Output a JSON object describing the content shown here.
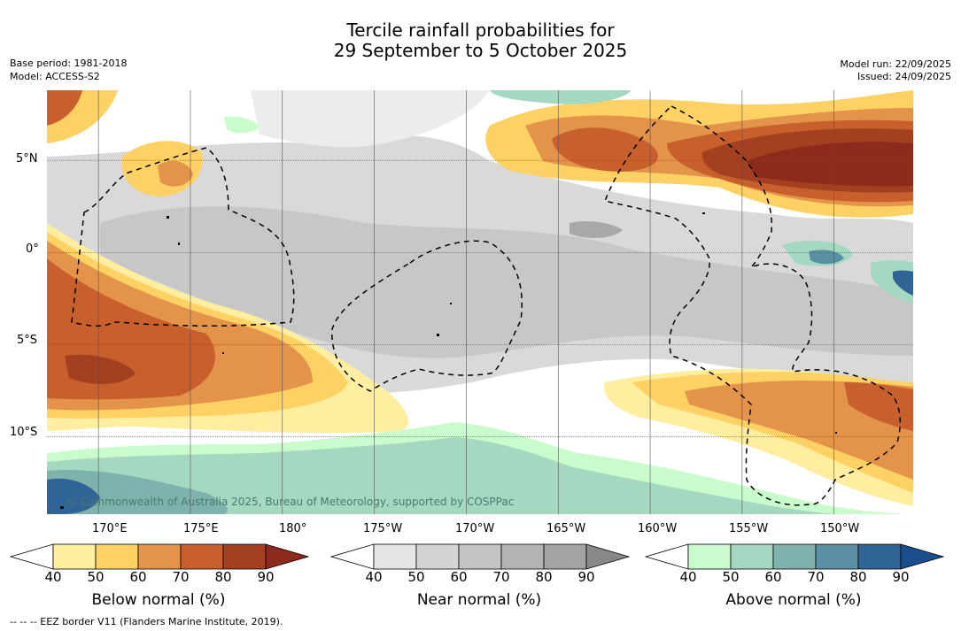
{
  "header": {
    "title_line1": "Tercile rainfall probabilities for",
    "title_line2": "29 September to 5 October 2025",
    "base_period": "Base period: 1981-2018",
    "model": "Model: ACCESS-S2",
    "model_run": "Model run: 22/09/2025",
    "issued": "Issued: 24/09/2025"
  },
  "map": {
    "lat_labels": [
      "5°N",
      "0°",
      "5°S",
      "10°S"
    ],
    "lon_labels": [
      "170°E",
      "175°E",
      "180°",
      "175°W",
      "170°W",
      "165°W",
      "160°W",
      "155°W",
      "150°W"
    ],
    "copyright": "© Commonwealth of Australia 2025, Bureau of Meteorology, supported by COSPPac",
    "lat_range": [
      -14.2,
      8.8
    ],
    "lon_range": [
      167.2,
      214.3
    ],
    "gridline_lats": [
      5,
      0,
      -5,
      -10
    ],
    "gridline_lons": [
      170,
      175,
      180,
      185,
      190,
      195,
      200,
      205,
      210
    ]
  },
  "colorbars": [
    {
      "title": "Below normal (%)",
      "ticks": [
        "40",
        "50",
        "60",
        "70",
        "80",
        "90"
      ],
      "colors": [
        "#ffffff",
        "#ffeda0",
        "#fed165",
        "#e4934a",
        "#c8602e",
        "#a34020",
        "#8b2a1d"
      ]
    },
    {
      "title": "Near normal (%)",
      "ticks": [
        "40",
        "50",
        "60",
        "70",
        "80",
        "90"
      ],
      "colors": [
        "#ffffff",
        "#e6e6e6",
        "#d4d4d4",
        "#c4c4c4",
        "#b3b3b3",
        "#a3a3a3",
        "#888888"
      ]
    },
    {
      "title": "Above normal (%)",
      "ticks": [
        "40",
        "50",
        "60",
        "70",
        "80",
        "90"
      ],
      "colors": [
        "#ffffff",
        "#c9fbcc",
        "#a5d8c0",
        "#7fb2ad",
        "#5a8fa4",
        "#306496",
        "#1c4d8c"
      ]
    }
  ],
  "footer": {
    "eez_legend": "--  --  -- EEZ border V11 (Flanders Marine Institute, 2019)."
  },
  "colors": {
    "background": "#ffffff",
    "gridline": "#555555"
  }
}
